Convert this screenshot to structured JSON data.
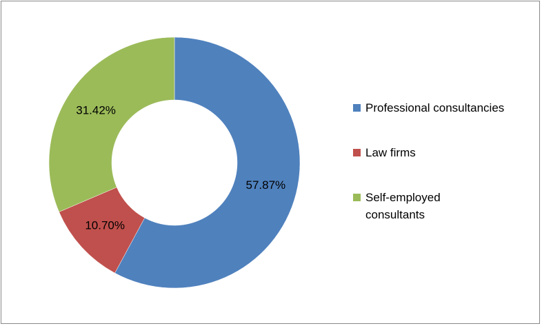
{
  "chart_data": {
    "type": "donut",
    "categories": [
      "Professional consultancies",
      "Law firms",
      "Self-employed consultants"
    ],
    "values": [
      57.87,
      10.7,
      31.42
    ],
    "value_labels": [
      "57.87%",
      "10.70%",
      "31.42%"
    ],
    "colors": [
      "#4f81bd",
      "#c0504d",
      "#9bbb59"
    ],
    "legend": "right"
  }
}
